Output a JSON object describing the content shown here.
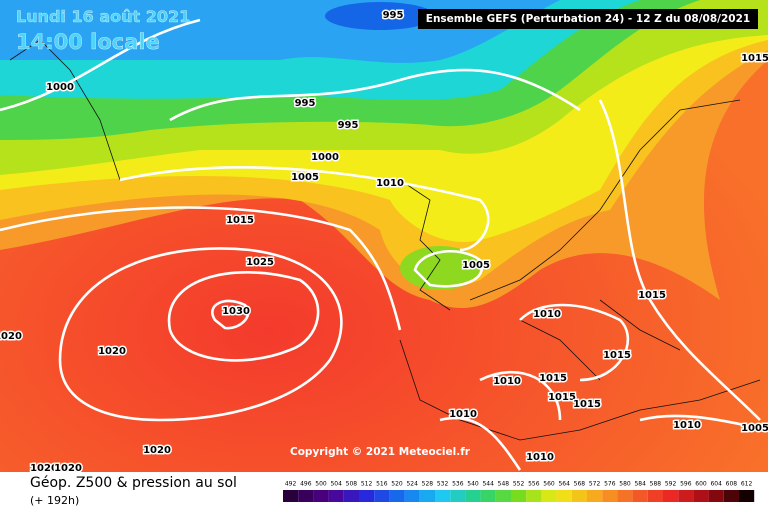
{
  "header": {
    "date": "Lundi 16 août 2021",
    "time": "14:00 locale",
    "model": "Ensemble GEFS  (Perturbation 24)  -  12 Z du 08/08/2021"
  },
  "isobar_labels": [
    "995",
    "1015",
    "1000",
    "995",
    "995",
    "1000",
    "1005",
    "1010",
    "1015",
    "1025",
    "1005",
    "1015",
    "1030",
    "1010",
    "1020",
    "1020",
    "1015",
    "1010",
    "1015",
    "1015",
    "1015",
    "1010",
    "1010",
    "1005",
    "1020",
    "1010",
    "1020",
    "1020"
  ],
  "footer": {
    "copyright": "Copyright © 2021 Meteociel.fr",
    "product": "Géop. Z500 & pression au sol",
    "lead": "(+ 192h)"
  },
  "scale": [
    "492",
    "496",
    "500",
    "504",
    "508",
    "512",
    "516",
    "520",
    "524",
    "528",
    "532",
    "536",
    "540",
    "544",
    "548",
    "552",
    "556",
    "560",
    "564",
    "568",
    "572",
    "576",
    "580",
    "584",
    "588",
    "592",
    "596",
    "600",
    "604",
    "608",
    "612"
  ]
}
